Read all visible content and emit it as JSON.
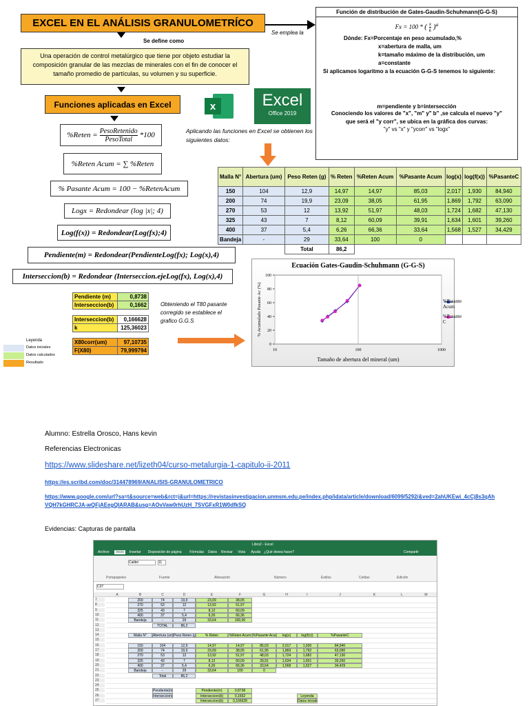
{
  "header": {
    "title": "EXCEL EN EL ANÁLISIS GRANULOMETRÍCO",
    "define_label": "Se define como",
    "definition": "Una operación de control metalúrgico que tiene por objeto estudiar la composición granular de las mezclas de minerales con el fin de conocer el tamaño promedio de partículas, su volumen y su superficie.",
    "functions_title": "Funciones aplicadas en Excel",
    "uses_label": "Se emplea la"
  },
  "formulas": {
    "reten": {
      "lhs": "%Reten =",
      "num": "PesoRetenido",
      "den": "PesoTotal",
      "rhs": "*100"
    },
    "list": [
      "%Reten Acum = ∑ %Reten",
      "% Pasante Acum = 100 − %RetenAcum",
      "Logx = Redondear (log |x|; 4)",
      "Log(f(x)) = Redondear(Log(fx);4)",
      "Pendiente(m) = Redondear(PendienteLog(fx); Log(x),4)",
      "Interseccion(b) = Redondear (Interseccion.ejeLog(fx), Log(x),4)"
    ]
  },
  "ggs": {
    "title": "Función de distribución de Gates-Gaudin-Schuhmann(G-G-S)",
    "formula": {
      "lhs": "Fx = 100 *",
      "num": "x",
      "den": "k",
      "exp": "a"
    },
    "lines": [
      "Dónde:  Fx=Porcentaje en peso acumulado,%",
      "x=abertura de malla, um",
      "k=tamaño máximo de la distribución, um",
      "a=constante",
      "Si aplicamos logaritmo a la ecuación G-G-S tenemos lo siguiente:"
    ],
    "m_b": "m=pendiente y b=intersección",
    "note": "Conociendo los valores de \"x\", \"m\" y\" b\" ,se calcula el nuevo \"y\" que será el \"y corr\", se ubica en la gráfica dos curvas:",
    "curves": "\"y\" vs \"x\" y  \"ycorr\" vs \"logx\""
  },
  "excel_logo": {
    "icon": "x",
    "name": "Excel",
    "version": "Office 2019"
  },
  "applying_note": "Aplicando las funciones en Excel se obtienen los siguientes datos:",
  "table": {
    "headers": [
      "Malla N°",
      "Abertura (um)",
      "Peso Reten (g)",
      "% Reten",
      "%Reten Acum",
      "%Pasante Acum",
      "log(x)",
      "log(f(x))",
      "%PasanteC"
    ],
    "rows": [
      [
        "150",
        "104",
        "12,9",
        "14,97",
        "14,97",
        "85,03",
        "2,017",
        "1,930",
        "84,940"
      ],
      [
        "200",
        "74",
        "19,9",
        "23,09",
        "38,05",
        "61,95",
        "1,869",
        "1,792",
        "63,090"
      ],
      [
        "270",
        "53",
        "12",
        "13,92",
        "51,97",
        "48,03",
        "1,724",
        "1,682",
        "47,130"
      ],
      [
        "325",
        "43",
        "7",
        "8,12",
        "60,09",
        "39,91",
        "1,634",
        "1,601",
        "39,260"
      ],
      [
        "400",
        "37",
        "5,4",
        "6,26",
        "66,36",
        "33,64",
        "1,568",
        "1,527",
        "34,429"
      ],
      [
        "Bandeja",
        "-",
        "29",
        "33,64",
        "100",
        "0",
        null,
        null,
        null
      ]
    ],
    "total_label": "Total",
    "total_value": "86,2"
  },
  "results": {
    "rows": [
      [
        "Pendiente (m)",
        "0,8738"
      ],
      [
        "Interseccion(b)",
        "0,1662"
      ],
      [
        "Interseccion(b)",
        "0,166628"
      ],
      [
        "k",
        "125,36023"
      ],
      [
        "X80corr(um)",
        "97,10735"
      ],
      [
        "F(X80)",
        "79,999794"
      ]
    ]
  },
  "t80_note": "Obteniendo el T80 pasante corregido se establece el grafico G.G.S",
  "legend": {
    "title": "Leyenda",
    "items": [
      "Datos iniciales",
      "Datos calculados",
      "Resultado"
    ]
  },
  "chart_data": {
    "type": "line",
    "title": "Ecuación Gates-Gaudin-Schuhmann (G-G-S)",
    "x_label": "Tamaño  de abertura del mineral (um)",
    "y_label": "% Acumulado Pasante Ac (%)",
    "x": [
      104,
      74,
      53,
      43,
      37
    ],
    "xscale": "log",
    "xlim": [
      10,
      1000
    ],
    "xticks": [
      10,
      100,
      1000
    ],
    "ylim": [
      0,
      100
    ],
    "yticks": [
      0,
      20,
      40,
      60,
      80,
      100
    ],
    "grid": true,
    "legend": "right",
    "series": [
      {
        "name": "%Pasante Acum",
        "color": "#1f3fa0",
        "values": [
          85.03,
          61.95,
          48.03,
          39.91,
          33.64
        ]
      },
      {
        "name": "%PasanteC",
        "color": "#e020c0",
        "values": [
          84.94,
          63.09,
          47.13,
          39.26,
          34.429
        ]
      }
    ]
  },
  "footer": {
    "student": "Alumno: Estrella Orosco, Hans kevin",
    "refs_title": "Referencias Electronicas",
    "links": [
      "https://www.slideshare.net/lizeth04/curso-metalurgia-1-capitulo-ii-2011",
      "https://es.scribd.com/doc/314478969/ANALISIS-GRANULOMETRICO",
      "https://www.google.com/url?sa=t&source=web&rct=j&url=https://revistasinvestigacion.unmsm.edu.pe/index.php/idata/article/download/6099/5292/&ved=2ahUKEwi_4cCj8s3qAhVQH7kGHRCJA-wQFjAEegQIARAB&usg=AOvVaw0rhUzH_7SVGFxR1W0dfkSQ"
    ],
    "evidence": "Evidencias: Capturas de pantalla"
  },
  "screenshot": {
    "window_title": "Libro2 - Excel",
    "tabs": [
      "Archivo",
      "Inicio",
      "Insertar",
      "Disposición de página",
      "Fórmulas",
      "Datos",
      "Revisar",
      "Vista",
      "Ayuda",
      "¿Qué desea hacer?",
      "Compartir"
    ],
    "groups": [
      "Portapapeles",
      "Fuente",
      "Alineación",
      "Número",
      "Estilos",
      "Celdas",
      "Edición"
    ],
    "font": "Calibri",
    "font_size": "11",
    "name_box": "C37",
    "columns": [
      "A",
      "B",
      "C",
      "D",
      "E",
      "F",
      "G",
      "H",
      "I",
      "J",
      "K",
      "L",
      "M"
    ],
    "rows": [
      {
        "n": "7",
        "cells": [
          null,
          "200",
          "74",
          "19,9",
          "23,09",
          "38,05"
        ]
      },
      {
        "n": "8",
        "cells": [
          null,
          "270",
          "53",
          "12",
          "13,92",
          "51,97"
        ]
      },
      {
        "n": "9",
        "cells": [
          null,
          "325",
          "43",
          "7",
          "8,12",
          "60,09"
        ]
      },
      {
        "n": "10",
        "cells": [
          null,
          "400",
          "37",
          "5,4",
          "6,26",
          "66,36"
        ]
      },
      {
        "n": "11",
        "cells": [
          null,
          "Bandeja",
          "-",
          "29",
          "33,64",
          "100,00"
        ]
      },
      {
        "n": "12",
        "cells": [
          null,
          null,
          "TOTAL",
          "86,2"
        ]
      },
      {
        "n": "13",
        "cells": []
      },
      {
        "n": "14",
        "cells": [
          null,
          "Malla N°",
          "Abertura (um)",
          "Peso Reten (g)",
          "% Reten",
          "%Reten Acum",
          "%Pasante Acum",
          "log(x)",
          "log(f(x))",
          "%PasanteC"
        ]
      },
      {
        "n": "15",
        "cells": []
      },
      {
        "n": "16",
        "cells": [
          null,
          "150",
          "104",
          "12,9",
          "14,97",
          "14,97",
          "85,03",
          "2,017",
          "1,930",
          "84,940"
        ]
      },
      {
        "n": "17",
        "cells": [
          null,
          "200",
          "74",
          "19,9",
          "23,09",
          "38,05",
          "61,95",
          "1,869",
          "1,792",
          "63,090"
        ]
      },
      {
        "n": "18",
        "cells": [
          null,
          "270",
          "53",
          "12",
          "13,92",
          "51,97",
          "48,03",
          "1,724",
          "1,682",
          "47,130"
        ]
      },
      {
        "n": "19",
        "cells": [
          null,
          "325",
          "43",
          "7",
          "8,12",
          "60,09",
          "39,91",
          "1,634",
          "1,601",
          "39,260"
        ]
      },
      {
        "n": "20",
        "cells": [
          null,
          "400",
          "37",
          "5,4",
          "6,26",
          "66,36",
          "33,64",
          "1,568",
          "1,527",
          "34,429"
        ]
      },
      {
        "n": "21",
        "cells": [
          null,
          "Bandeja",
          "-",
          "29",
          "33,64",
          "100",
          "0"
        ]
      },
      {
        "n": "22",
        "cells": [
          null,
          null,
          "Total",
          "86,2"
        ]
      },
      {
        "n": "23",
        "cells": []
      },
      {
        "n": "24",
        "cells": []
      },
      {
        "n": "25",
        "cells": [
          null,
          null,
          "Pendiente(m)",
          null,
          "Pendiente(m)",
          "0,8738"
        ]
      },
      {
        "n": "26",
        "cells": [
          null,
          null,
          "Interseccion(b)",
          null,
          "Interseccion(b)",
          "0,1662",
          null,
          null,
          "Leyenda"
        ]
      },
      {
        "n": "27",
        "cells": [
          null,
          null,
          null,
          null,
          "Interseccion(b)",
          "0,166628",
          null,
          null,
          "Datos iniciales"
        ]
      }
    ]
  }
}
